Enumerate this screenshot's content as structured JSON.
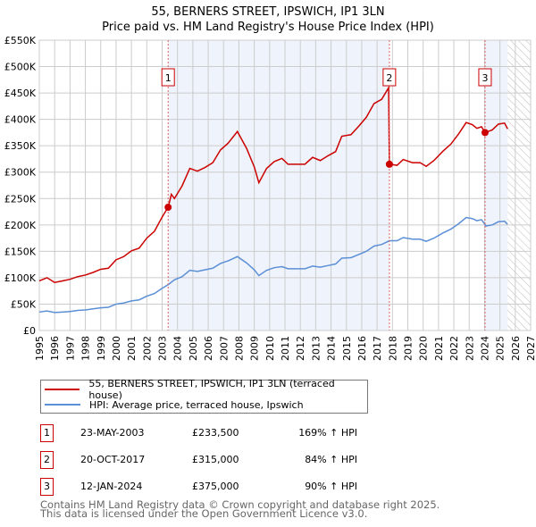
{
  "chart_data": {
    "type": "line",
    "title": "55, BERNERS STREET, IPSWICH, IP1 3LN",
    "subtitle": "Price paid vs. HM Land Registry's House Price Index (HPI)",
    "xlim": [
      1995,
      2027
    ],
    "ylim": [
      0,
      550000
    ],
    "x_ticks": [
      "1995",
      "1996",
      "1997",
      "1998",
      "1999",
      "2000",
      "2001",
      "2002",
      "2003",
      "2004",
      "2005",
      "2006",
      "2007",
      "2008",
      "2009",
      "2010",
      "2011",
      "2012",
      "2013",
      "2014",
      "2015",
      "2016",
      "2017",
      "2018",
      "2019",
      "2020",
      "2021",
      "2022",
      "2023",
      "2024",
      "2025",
      "2026",
      "2027"
    ],
    "y_ticks": [
      {
        "v": 0,
        "label": "£0"
      },
      {
        "v": 50000,
        "label": "£50K"
      },
      {
        "v": 100000,
        "label": "£100K"
      },
      {
        "v": 150000,
        "label": "£150K"
      },
      {
        "v": 200000,
        "label": "£200K"
      },
      {
        "v": 250000,
        "label": "£250K"
      },
      {
        "v": 300000,
        "label": "£300K"
      },
      {
        "v": 350000,
        "label": "£350K"
      },
      {
        "v": 400000,
        "label": "£400K"
      },
      {
        "v": 450000,
        "label": "£450K"
      },
      {
        "v": 500000,
        "label": "£500K"
      },
      {
        "v": 550000,
        "label": "£550K"
      }
    ],
    "grid": true,
    "shaded_ranges": [
      [
        2003.39,
        2017.8
      ],
      [
        2024.03,
        2025.5
      ]
    ],
    "hatched_range": [
      2025.5,
      2027
    ],
    "series": [
      {
        "name": "55, BERNERS STREET, IPSWICH, IP1 3LN (terraced house)",
        "color": "#cc0000",
        "x": [
          1995,
          1995.5,
          1996,
          1996.5,
          1997,
          1997.5,
          1998,
          1998.5,
          1999,
          1999.5,
          2000,
          2000.5,
          2001,
          2001.5,
          2002,
          2002.5,
          2003,
          2003.4,
          2003.6,
          2003.8,
          2004.3,
          2004.8,
          2005.3,
          2005.8,
          2006.3,
          2006.8,
          2007.3,
          2007.9,
          2008.5,
          2009.0,
          2009.3,
          2009.8,
          2010.3,
          2010.8,
          2011.2,
          2011.8,
          2012.3,
          2012.8,
          2013.3,
          2013.8,
          2014.3,
          2014.7,
          2015.3,
          2015.8,
          2016.3,
          2016.8,
          2017.3,
          2017.75,
          2017.8,
          2018.3,
          2018.7,
          2019.3,
          2019.8,
          2020.2,
          2020.7,
          2021.3,
          2021.8,
          2022.3,
          2022.8,
          2023.2,
          2023.5,
          2023.8,
          2024.03,
          2024.5,
          2024.9,
          2025.3,
          2025.5
        ],
        "y": [
          94,
          100,
          91,
          94,
          97,
          102,
          105,
          110,
          116,
          118,
          134,
          140,
          151,
          156,
          175,
          188,
          215,
          234,
          258,
          250,
          274,
          307,
          302,
          309,
          318,
          342,
          355,
          377,
          345,
          310,
          280,
          307,
          320,
          326,
          315,
          315,
          315,
          328,
          322,
          331,
          339,
          368,
          371,
          387,
          404,
          430,
          438,
          460,
          315,
          313,
          324,
          318,
          318,
          311,
          322,
          340,
          353,
          372,
          394,
          390,
          383,
          386,
          375,
          380,
          391,
          393,
          382
        ]
      },
      {
        "name": "HPI: Average price, terraced house, Ipswich",
        "color": "#5b8fd6",
        "x": [
          1995,
          1995.5,
          1996,
          1996.5,
          1997,
          1997.5,
          1998,
          1998.5,
          1999,
          1999.5,
          2000,
          2000.5,
          2001,
          2001.5,
          2002,
          2002.5,
          2003,
          2003.4,
          2003.8,
          2004.3,
          2004.8,
          2005.3,
          2005.8,
          2006.3,
          2006.8,
          2007.3,
          2007.9,
          2008.5,
          2009.0,
          2009.3,
          2009.8,
          2010.3,
          2010.8,
          2011.2,
          2011.8,
          2012.3,
          2012.8,
          2013.3,
          2013.8,
          2014.3,
          2014.7,
          2015.3,
          2015.8,
          2016.3,
          2016.8,
          2017.3,
          2017.8,
          2018.3,
          2018.7,
          2019.3,
          2019.8,
          2020.2,
          2020.7,
          2021.3,
          2021.8,
          2022.3,
          2022.8,
          2023.2,
          2023.5,
          2023.8,
          2024.1,
          2024.5,
          2024.9,
          2025.3,
          2025.5
        ],
        "y": [
          35,
          37,
          34,
          35,
          36,
          38,
          39,
          41,
          43,
          44,
          50,
          52,
          56,
          58,
          65,
          70,
          80,
          87,
          96,
          102,
          114,
          112,
          115,
          118,
          127,
          132,
          140,
          128,
          115,
          104,
          114,
          119,
          121,
          117,
          117,
          117,
          122,
          120,
          123,
          126,
          137,
          138,
          144,
          150,
          160,
          163,
          170,
          170,
          176,
          173,
          173,
          169,
          175,
          185,
          192,
          202,
          214,
          212,
          208,
          210,
          198,
          200,
          206,
          207,
          201
        ]
      }
    ],
    "y_unit_multiplier": 1000,
    "sales": [
      {
        "num": "1",
        "x": 2003.39,
        "y": 233.5,
        "date": "23-MAY-2003",
        "price": "£233,500",
        "hpi": "169% ↑ HPI"
      },
      {
        "num": "2",
        "x": 2017.8,
        "y": 315,
        "date": "20-OCT-2017",
        "price": "£315,000",
        "hpi": "84% ↑ HPI"
      },
      {
        "num": "3",
        "x": 2024.03,
        "y": 375,
        "date": "12-JAN-2024",
        "price": "£375,000",
        "hpi": "90% ↑ HPI"
      }
    ],
    "legend_placement": "below"
  },
  "footer": {
    "line1": "Contains HM Land Registry data © Crown copyright and database right 2025.",
    "line2": "This data is licensed under the Open Government Licence v3.0."
  }
}
